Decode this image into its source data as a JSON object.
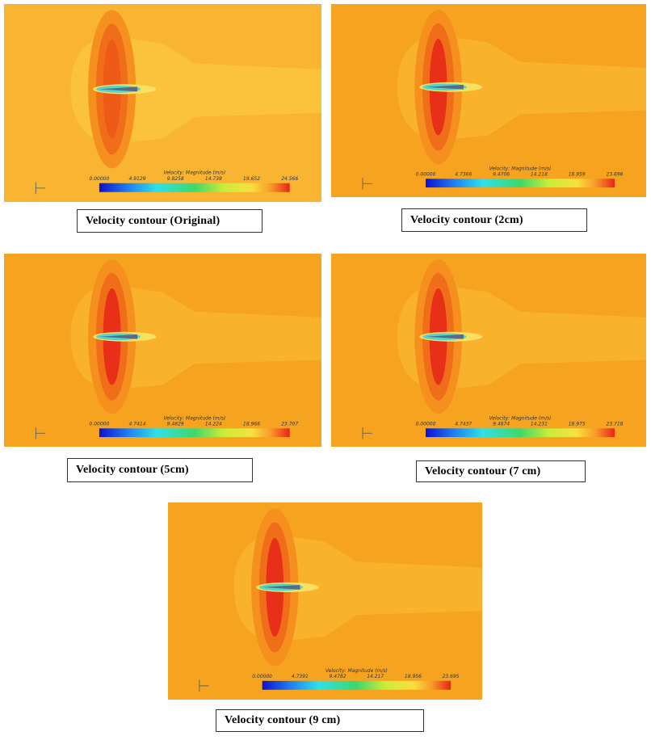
{
  "panels": [
    {
      "caption": "Velocity contour (Original)",
      "colorbar_title": "Velocity: Magnitude (m/s)",
      "colorbar_ticks": [
        "0.00000",
        "4.9129",
        "9.8258",
        "14.739",
        "19.652",
        "24.566"
      ]
    },
    {
      "caption": "Velocity contour (2cm)",
      "colorbar_title": "Velocity: Magnitude (m/s)",
      "colorbar_ticks": [
        "0.00000",
        "4.7366",
        "9.4706",
        "14.218",
        "18.959",
        "23.696"
      ]
    },
    {
      "caption": "Velocity contour (5cm)",
      "colorbar_title": "Velocity: Magnitude (m/s)",
      "colorbar_ticks": [
        "0.00000",
        "4.7414",
        "9.4829",
        "14.224",
        "18.966",
        "23.707"
      ]
    },
    {
      "caption": "Velocity contour (7 cm)",
      "colorbar_title": "Velocity: Magnitude (m/s)",
      "colorbar_ticks": [
        "0.00000",
        "4.7437",
        "9.4874",
        "14.231",
        "18.975",
        "23.718"
      ]
    },
    {
      "caption": "Velocity contour (9 cm)",
      "colorbar_title": "Velocity: Magnitude (m/s)",
      "colorbar_ticks": [
        "0.00000",
        "4.7391",
        "9.4782",
        "14.217",
        "18.956",
        "23.695"
      ]
    }
  ]
}
